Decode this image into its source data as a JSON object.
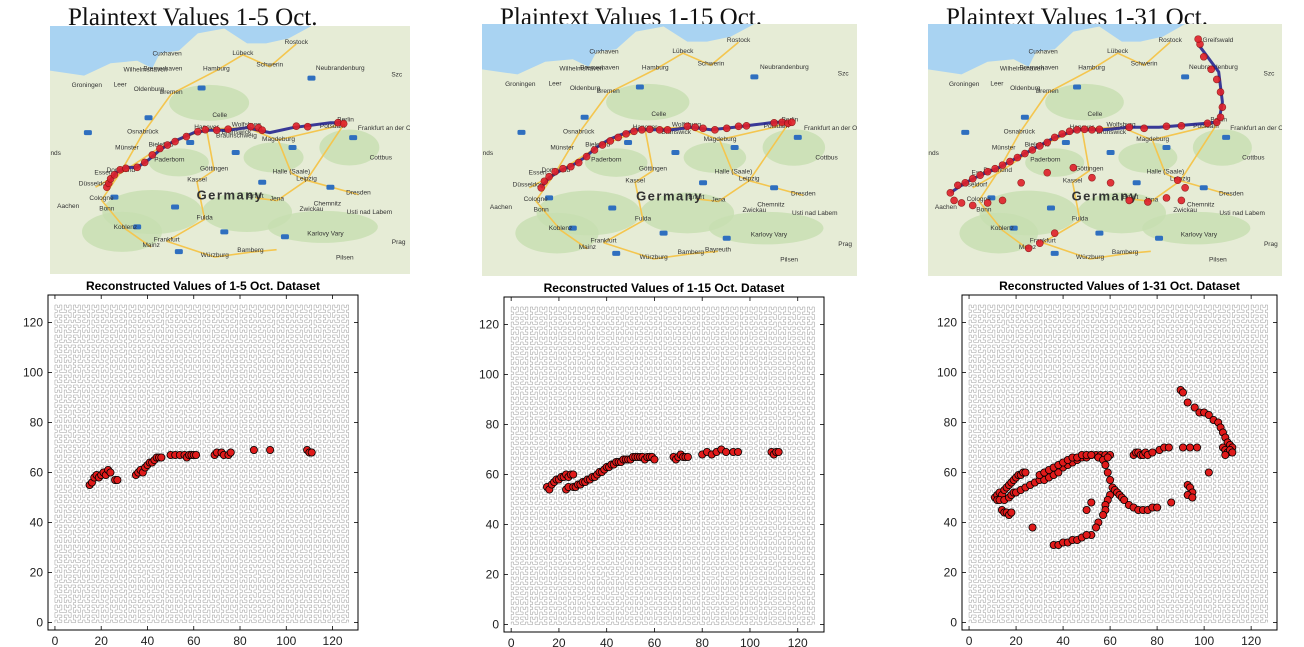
{
  "colors": {
    "marker_fill": "#e01a1a",
    "marker_edge": "#000000",
    "map_marker_fill": "#e0202a",
    "map_marker_edge": "#1a1a8c",
    "curve": "#9a9a9a",
    "sea": "#a9d3f2",
    "land": "#e6ecd6",
    "forest": "#c7dfb0",
    "highway": "#f4c64f",
    "highway_shield": "#2f6fbf"
  },
  "maps": [
    {
      "title": "Plaintext Values 1-5 Oct.",
      "labels": [
        "Rostock",
        "Lübeck",
        "Hamburg",
        "Schwerin",
        "Bremerhaven",
        "Bremen",
        "Oldenburg",
        "Groningen",
        "Neubrandenburg",
        "Hanover",
        "Wolfsburg",
        "Berlin",
        "Potsdam",
        "Osnabrück",
        "Bielefeld",
        "Brunswick",
        "Magdeburg",
        "Münster",
        "Dortmund",
        "Paderborn",
        "Essen",
        "Düsseldorf",
        "Cologne",
        "Bonn",
        "Kassel",
        "Göttingen",
        "Halle (Saale)",
        "Leipzig",
        "Dresden",
        "Germany",
        "Erfurt",
        "Jena",
        "Chemnitz",
        "Zwickau",
        "Frankfurt",
        "Koblenz",
        "Aachen",
        "Mainz",
        "Würzburg",
        "Bamberg",
        "Fulda",
        "Karlovy Vary",
        "Pilsen",
        "Cottbus",
        "Frankfurt an der Oder",
        "Usti nad Labem",
        "Cuxhaven",
        "Wilhelmshaven",
        "Celle",
        "Leer",
        "Szc",
        "Prag",
        "nds",
        "Braunschweig"
      ]
    },
    {
      "title": "Plaintext Values 1-15 Oct.",
      "labels": [
        "Rostock",
        "Lübeck",
        "Hamburg",
        "Schwerin",
        "Bremerhaven",
        "Bremen",
        "Oldenburg",
        "Groningen",
        "Neubrandenburg",
        "Hanover",
        "Wolfsburg",
        "Berlin",
        "Potsdam",
        "Osnabrück",
        "Bielefeld",
        "Brunswick",
        "Magdeburg",
        "Münster",
        "Dortmund",
        "Paderborn",
        "Essen",
        "Düsseldorf",
        "Cologne",
        "Bonn",
        "Kassel",
        "Göttingen",
        "Halle (Saale)",
        "Leipzig",
        "Dresden",
        "Germany",
        "Erfurt",
        "Jena",
        "Chemnitz",
        "Zwickau",
        "Frankfurt",
        "Koblenz",
        "Aachen",
        "Mainz",
        "Würzburg",
        "Bamberg",
        "Fulda",
        "Karlovy Vary",
        "Pilsen",
        "Cottbus",
        "Frankfurt an der Oder",
        "Usti nad Labem",
        "Cuxhaven",
        "Wilhelmshaven",
        "Celle",
        "Leer",
        "Szc",
        "Prag",
        "nds",
        "Bayreuth"
      ]
    },
    {
      "title": "Plaintext Values 1-31 Oct.",
      "labels": [
        "Rostock",
        "Lübeck",
        "Hamburg",
        "Schwerin",
        "Bremerhaven",
        "Bremen",
        "Oldenburg",
        "Groningen",
        "Neubrandenburg",
        "Hanover",
        "Wolfsburg",
        "Berlin",
        "Potsdam",
        "Osnabrück",
        "Bielefeld",
        "Brunswick",
        "Magdeburg",
        "Münster",
        "Dortmund",
        "Paderborn",
        "Essen",
        "Düsseldorf",
        "Cologne",
        "Bonn",
        "Kassel",
        "Göttingen",
        "Halle (Saale)",
        "Leipzig",
        "Dresden",
        "Germany",
        "Erfurt",
        "Jena",
        "Chemnitz",
        "Zwickau",
        "Frankfurt",
        "Koblenz",
        "Aachen",
        "Mainz",
        "Würzburg",
        "Bamberg",
        "Fulda",
        "Karlovy Vary",
        "Pilsen",
        "Cottbus",
        "Frankfurt an der Oder",
        "Usti nad Labem",
        "Cuxhaven",
        "Wilhelmshaven",
        "Celle",
        "Leer",
        "Szc",
        "Prag",
        "nds",
        "Greifswald"
      ]
    }
  ],
  "chart_data": [
    {
      "type": "scatter",
      "title": "Reconstructed Values of 1-5 Oct. Dataset",
      "xlabel": "",
      "ylabel": "",
      "xlim": [
        -3,
        131
      ],
      "ylim": [
        -3,
        131
      ],
      "xticks": [
        0,
        20,
        40,
        60,
        80,
        100,
        120
      ],
      "yticks": [
        0,
        20,
        40,
        60,
        80,
        100,
        120
      ],
      "background": "hilbert-curve-order-7",
      "grid": false,
      "points": [
        [
          15,
          55
        ],
        [
          16,
          56
        ],
        [
          17,
          58
        ],
        [
          18,
          59
        ],
        [
          19,
          58
        ],
        [
          20,
          59
        ],
        [
          21,
          60
        ],
        [
          22,
          59
        ],
        [
          23,
          61
        ],
        [
          24,
          60
        ],
        [
          26,
          57
        ],
        [
          27,
          57
        ],
        [
          35,
          59
        ],
        [
          36,
          60
        ],
        [
          37,
          61
        ],
        [
          38,
          60
        ],
        [
          39,
          62
        ],
        [
          40,
          63
        ],
        [
          41,
          64
        ],
        [
          42,
          64
        ],
        [
          43,
          65
        ],
        [
          44,
          66
        ],
        [
          45,
          66
        ],
        [
          46,
          66
        ],
        [
          50,
          67
        ],
        [
          52,
          67
        ],
        [
          54,
          67
        ],
        [
          56,
          67
        ],
        [
          57,
          66
        ],
        [
          58,
          67
        ],
        [
          59,
          67
        ],
        [
          60,
          67
        ],
        [
          61,
          67
        ],
        [
          69,
          67
        ],
        [
          70,
          68
        ],
        [
          72,
          68
        ],
        [
          73,
          67
        ],
        [
          75,
          67
        ],
        [
          76,
          68
        ],
        [
          86,
          69
        ],
        [
          93,
          69
        ],
        [
          109,
          69
        ],
        [
          110,
          68
        ],
        [
          111,
          68
        ]
      ]
    },
    {
      "type": "scatter",
      "title": "Reconstructed Values of 1-15 Oct. Dataset",
      "xlabel": "",
      "ylabel": "",
      "xlim": [
        -3,
        131
      ],
      "ylim": [
        -3,
        131
      ],
      "xticks": [
        0,
        20,
        40,
        60,
        80,
        100,
        120
      ],
      "yticks": [
        0,
        20,
        40,
        60,
        80,
        100,
        120
      ],
      "background": "hilbert-curve-order-7",
      "grid": false,
      "points": [
        [
          15,
          55
        ],
        [
          16,
          54
        ],
        [
          17,
          56
        ],
        [
          18,
          57
        ],
        [
          19,
          58
        ],
        [
          20,
          58
        ],
        [
          21,
          59
        ],
        [
          22,
          59
        ],
        [
          23,
          60
        ],
        [
          24,
          59
        ],
        [
          25,
          60
        ],
        [
          26,
          60
        ],
        [
          23,
          54
        ],
        [
          24,
          55
        ],
        [
          26,
          55
        ],
        [
          27,
          55
        ],
        [
          28,
          56
        ],
        [
          29,
          56
        ],
        [
          30,
          57
        ],
        [
          31,
          57
        ],
        [
          32,
          58
        ],
        [
          33,
          58
        ],
        [
          34,
          59
        ],
        [
          35,
          59
        ],
        [
          36,
          60
        ],
        [
          37,
          61
        ],
        [
          38,
          61
        ],
        [
          39,
          62
        ],
        [
          40,
          63
        ],
        [
          41,
          63
        ],
        [
          42,
          64
        ],
        [
          43,
          64
        ],
        [
          44,
          65
        ],
        [
          45,
          65
        ],
        [
          46,
          65
        ],
        [
          47,
          66
        ],
        [
          48,
          66
        ],
        [
          49,
          66
        ],
        [
          50,
          66
        ],
        [
          51,
          67
        ],
        [
          52,
          67
        ],
        [
          53,
          67
        ],
        [
          54,
          67
        ],
        [
          55,
          67
        ],
        [
          56,
          66
        ],
        [
          57,
          67
        ],
        [
          58,
          67
        ],
        [
          59,
          67
        ],
        [
          60,
          66
        ],
        [
          68,
          67
        ],
        [
          69,
          66
        ],
        [
          70,
          67
        ],
        [
          71,
          68
        ],
        [
          72,
          67
        ],
        [
          73,
          67
        ],
        [
          74,
          67
        ],
        [
          80,
          68
        ],
        [
          82,
          69
        ],
        [
          84,
          68
        ],
        [
          86,
          69
        ],
        [
          88,
          70
        ],
        [
          90,
          69
        ],
        [
          93,
          69
        ],
        [
          95,
          69
        ],
        [
          109,
          69
        ],
        [
          110,
          68
        ],
        [
          111,
          69
        ],
        [
          112,
          69
        ]
      ]
    },
    {
      "type": "scatter",
      "title": "Reconstructed Values of 1-31 Oct. Dataset",
      "xlabel": "",
      "ylabel": "",
      "xlim": [
        -3,
        131
      ],
      "ylim": [
        -3,
        131
      ],
      "xticks": [
        0,
        20,
        40,
        60,
        80,
        100,
        120
      ],
      "yticks": [
        0,
        20,
        40,
        60,
        80,
        100,
        120
      ],
      "background": "hilbert-curve-order-7",
      "grid": false,
      "points": [
        [
          11,
          50
        ],
        [
          12,
          51
        ],
        [
          13,
          52
        ],
        [
          14,
          51
        ],
        [
          15,
          53
        ],
        [
          16,
          54
        ],
        [
          17,
          55
        ],
        [
          18,
          56
        ],
        [
          19,
          57
        ],
        [
          20,
          58
        ],
        [
          21,
          59
        ],
        [
          22,
          59
        ],
        [
          23,
          60
        ],
        [
          24,
          60
        ],
        [
          12,
          49
        ],
        [
          13,
          49
        ],
        [
          15,
          49
        ],
        [
          17,
          50
        ],
        [
          18,
          51
        ],
        [
          19,
          52
        ],
        [
          20,
          52
        ],
        [
          22,
          53
        ],
        [
          24,
          54
        ],
        [
          26,
          55
        ],
        [
          28,
          56
        ],
        [
          30,
          57
        ],
        [
          14,
          45
        ],
        [
          15,
          44
        ],
        [
          16,
          44
        ],
        [
          17,
          43
        ],
        [
          18,
          44
        ],
        [
          27,
          38
        ],
        [
          32,
          57
        ],
        [
          34,
          58
        ],
        [
          36,
          59
        ],
        [
          38,
          60
        ],
        [
          40,
          62
        ],
        [
          42,
          63
        ],
        [
          44,
          64
        ],
        [
          46,
          65
        ],
        [
          48,
          66
        ],
        [
          50,
          66
        ],
        [
          52,
          67
        ],
        [
          54,
          67
        ],
        [
          56,
          67
        ],
        [
          58,
          67
        ],
        [
          60,
          67
        ],
        [
          30,
          59
        ],
        [
          32,
          60
        ],
        [
          34,
          61
        ],
        [
          36,
          62
        ],
        [
          38,
          63
        ],
        [
          40,
          64
        ],
        [
          42,
          65
        ],
        [
          44,
          66
        ],
        [
          46,
          66
        ],
        [
          48,
          67
        ],
        [
          50,
          67
        ],
        [
          52,
          67
        ],
        [
          55,
          66
        ],
        [
          57,
          65
        ],
        [
          59,
          66
        ],
        [
          58,
          63
        ],
        [
          59,
          60
        ],
        [
          60,
          57
        ],
        [
          61,
          54
        ],
        [
          60,
          51
        ],
        [
          59,
          49
        ],
        [
          58,
          47
        ],
        [
          58,
          45
        ],
        [
          57,
          43
        ],
        [
          55,
          40
        ],
        [
          54,
          38
        ],
        [
          52,
          35
        ],
        [
          36,
          31
        ],
        [
          38,
          31
        ],
        [
          40,
          32
        ],
        [
          42,
          32
        ],
        [
          44,
          33
        ],
        [
          46,
          33
        ],
        [
          48,
          34
        ],
        [
          50,
          35
        ],
        [
          52,
          48
        ],
        [
          50,
          45
        ],
        [
          62,
          53
        ],
        [
          63,
          52
        ],
        [
          64,
          51
        ],
        [
          65,
          50
        ],
        [
          66,
          49
        ],
        [
          68,
          47
        ],
        [
          70,
          46
        ],
        [
          72,
          45
        ],
        [
          74,
          45
        ],
        [
          76,
          45
        ],
        [
          78,
          46
        ],
        [
          80,
          46
        ],
        [
          70,
          67
        ],
        [
          71,
          68
        ],
        [
          72,
          68
        ],
        [
          73,
          67
        ],
        [
          74,
          67
        ],
        [
          75,
          68
        ],
        [
          76,
          67
        ],
        [
          78,
          68
        ],
        [
          81,
          69
        ],
        [
          83,
          70
        ],
        [
          85,
          70
        ],
        [
          86,
          48
        ],
        [
          91,
          70
        ],
        [
          94,
          70
        ],
        [
          97,
          70
        ],
        [
          90,
          93
        ],
        [
          91,
          92
        ],
        [
          93,
          88
        ],
        [
          96,
          86
        ],
        [
          98,
          84
        ],
        [
          100,
          84
        ],
        [
          102,
          83
        ],
        [
          104,
          81
        ],
        [
          106,
          80
        ],
        [
          107,
          78
        ],
        [
          108,
          76
        ],
        [
          109,
          74
        ],
        [
          110,
          72
        ],
        [
          111,
          71
        ],
        [
          112,
          70
        ],
        [
          108,
          70
        ],
        [
          109,
          69
        ],
        [
          110,
          68
        ],
        [
          111,
          69
        ],
        [
          112,
          68
        ],
        [
          109,
          67
        ],
        [
          102,
          60
        ],
        [
          93,
          55
        ],
        [
          94,
          54
        ],
        [
          95,
          52
        ],
        [
          93,
          51
        ],
        [
          95,
          50
        ]
      ]
    }
  ]
}
